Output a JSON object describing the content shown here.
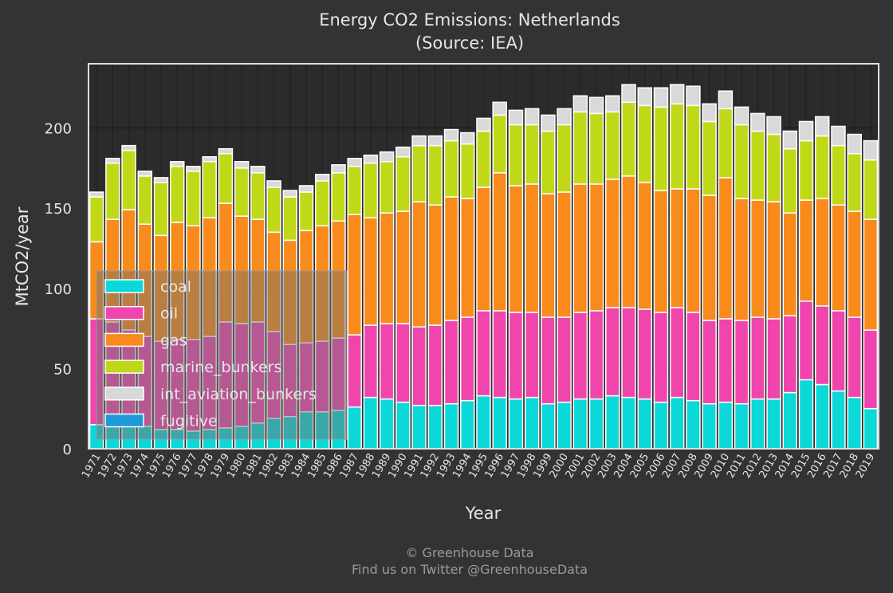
{
  "title": "Energy CO2 Emissions: Netherlands",
  "subtitle": "(Source: IEA)",
  "footer": {
    "line1": "© Greenhouse Data",
    "line2": "Find us on Twitter @GreenhouseData"
  },
  "chart_data": {
    "type": "bar",
    "stacked": true,
    "xlabel": "Year",
    "ylabel": "MtCO2/year",
    "ylim": [
      0,
      240
    ],
    "yticks": [
      0,
      50,
      100,
      150,
      200
    ],
    "grid": true,
    "legend_position": "lower-left",
    "categories": [
      "1971",
      "1972",
      "1973",
      "1974",
      "1975",
      "1976",
      "1977",
      "1978",
      "1979",
      "1980",
      "1981",
      "1982",
      "1983",
      "1984",
      "1985",
      "1986",
      "1987",
      "1988",
      "1989",
      "1990",
      "1991",
      "1992",
      "1993",
      "1994",
      "1995",
      "1996",
      "1997",
      "1998",
      "1999",
      "2000",
      "2001",
      "2002",
      "2003",
      "2004",
      "2005",
      "2006",
      "2007",
      "2008",
      "2009",
      "2010",
      "2011",
      "2012",
      "2013",
      "2014",
      "2015",
      "2016",
      "2017",
      "2018",
      "2019"
    ],
    "series": [
      {
        "name": "coal",
        "color": "#0bd8d8",
        "values": [
          15,
          14,
          14,
          14,
          12,
          12,
          11,
          12,
          13,
          14,
          16,
          19,
          20,
          23,
          23,
          24,
          26,
          32,
          31,
          29,
          27,
          27,
          28,
          30,
          33,
          32,
          31,
          32,
          28,
          29,
          31,
          31,
          33,
          32,
          31,
          29,
          32,
          30,
          28,
          29,
          28,
          31,
          31,
          35,
          43,
          40,
          36,
          32,
          25
        ]
      },
      {
        "name": "oil",
        "color": "#f045ad",
        "values": [
          66,
          65,
          60,
          56,
          55,
          56,
          57,
          58,
          66,
          64,
          63,
          54,
          45,
          43,
          44,
          45,
          45,
          45,
          47,
          49,
          49,
          50,
          52,
          52,
          53,
          54,
          54,
          53,
          54,
          53,
          54,
          55,
          55,
          56,
          56,
          56,
          56,
          55,
          52,
          52,
          52,
          51,
          50,
          48,
          49,
          49,
          50,
          50,
          49
        ]
      },
      {
        "name": "gas",
        "color": "#f88b1c",
        "values": [
          48,
          64,
          75,
          70,
          66,
          73,
          71,
          74,
          74,
          67,
          64,
          62,
          65,
          70,
          72,
          73,
          75,
          67,
          69,
          70,
          78,
          75,
          77,
          74,
          77,
          86,
          79,
          80,
          77,
          78,
          80,
          79,
          80,
          82,
          79,
          76,
          74,
          77,
          78,
          88,
          76,
          73,
          73,
          64,
          63,
          67,
          66,
          66,
          69
        ]
      },
      {
        "name": "marine_bunkers",
        "color": "#c1d818",
        "values": [
          28,
          35,
          37,
          30,
          33,
          35,
          34,
          35,
          31,
          30,
          29,
          28,
          27,
          24,
          28,
          30,
          30,
          34,
          32,
          34,
          35,
          37,
          35,
          34,
          35,
          36,
          38,
          37,
          39,
          42,
          45,
          44,
          42,
          46,
          48,
          52,
          53,
          52,
          46,
          43,
          46,
          43,
          42,
          40,
          37,
          39,
          37,
          36,
          37
        ]
      },
      {
        "name": "int_aviation_bunkers",
        "color": "#d9d9d9",
        "values": [
          3,
          3,
          3,
          3,
          3,
          3,
          3,
          3,
          3,
          4,
          4,
          4,
          4,
          4,
          4,
          5,
          5,
          5,
          6,
          6,
          6,
          6,
          7,
          7,
          8,
          8,
          9,
          10,
          10,
          10,
          10,
          10,
          10,
          11,
          11,
          12,
          12,
          12,
          11,
          11,
          11,
          11,
          11,
          11,
          12,
          12,
          12,
          12,
          12
        ]
      },
      {
        "name": "fugitive",
        "color": "#1e9ad8",
        "values": [
          0,
          0,
          0,
          0,
          0,
          0,
          0,
          0,
          0,
          0,
          0,
          0,
          0,
          0,
          0,
          0,
          0,
          0,
          0,
          0,
          0,
          0,
          0,
          0,
          0,
          0,
          0,
          0,
          0,
          0,
          0,
          0,
          0,
          0,
          0,
          0,
          0,
          0,
          0,
          0,
          0,
          0,
          0,
          0,
          0,
          0,
          0,
          0,
          0
        ]
      }
    ]
  }
}
